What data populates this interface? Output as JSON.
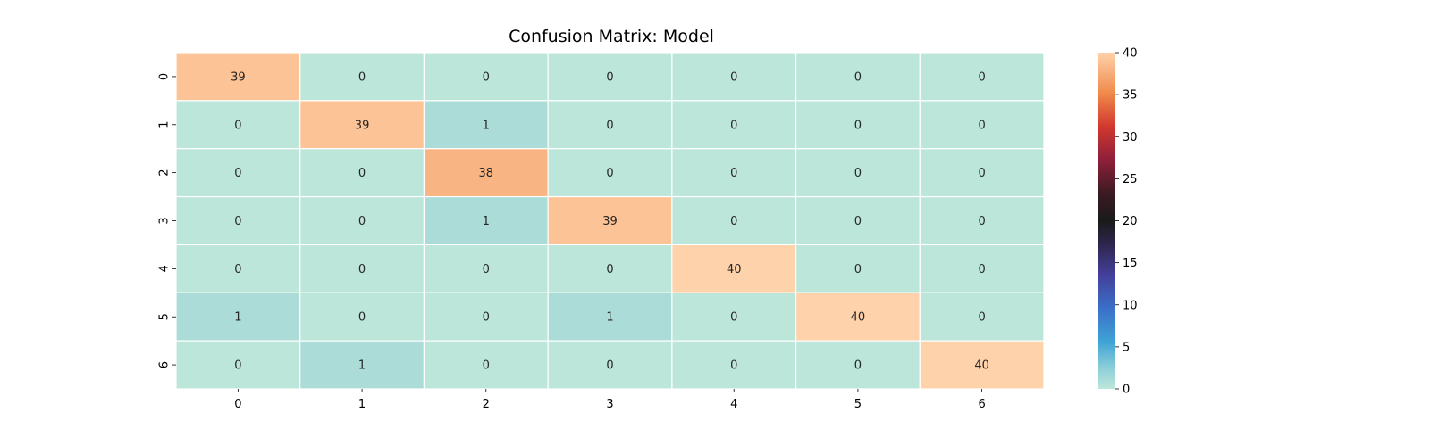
{
  "chart_data": {
    "type": "heatmap",
    "title": "Confusion Matrix: Model",
    "xlabel": "",
    "ylabel": "",
    "x_categories": [
      "0",
      "1",
      "2",
      "3",
      "4",
      "5",
      "6"
    ],
    "y_categories": [
      "0",
      "1",
      "2",
      "3",
      "4",
      "5",
      "6"
    ],
    "values": [
      [
        39,
        0,
        0,
        0,
        0,
        0,
        0
      ],
      [
        0,
        39,
        1,
        0,
        0,
        0,
        0
      ],
      [
        0,
        0,
        38,
        0,
        0,
        0,
        0
      ],
      [
        0,
        0,
        1,
        39,
        0,
        0,
        0
      ],
      [
        0,
        0,
        0,
        0,
        40,
        0,
        0
      ],
      [
        1,
        0,
        0,
        1,
        0,
        40,
        0
      ],
      [
        0,
        1,
        0,
        0,
        0,
        0,
        40
      ]
    ],
    "colorbar": {
      "range": [
        0,
        40
      ],
      "ticks": [
        0,
        5,
        10,
        15,
        20,
        25,
        30,
        35,
        40
      ],
      "colormap": "icefire"
    },
    "annotations_shown": true,
    "grid": false
  }
}
